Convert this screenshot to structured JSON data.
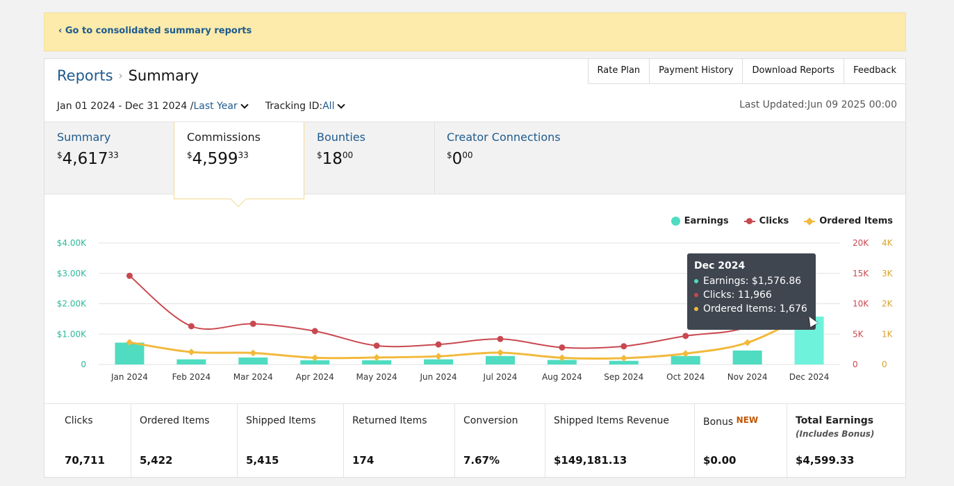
{
  "banner": {
    "link": "‹ Go to consolidated summary reports"
  },
  "header": {
    "breadcrumb_root": "Reports",
    "breadcrumb_sep": "›",
    "title": "Summary",
    "nav": [
      "Rate Plan",
      "Payment History",
      "Download Reports",
      "Feedback"
    ]
  },
  "filters": {
    "date_range": "Jan 01 2024 - Dec 31 2024 /",
    "period": "Last Year",
    "tracking_label": "Tracking ID:",
    "tracking_value": "All",
    "last_updated": "Last Updated:Jun 09 2025 00:00"
  },
  "tabs": [
    {
      "label": "Summary",
      "dollars": "4,617",
      "cents": "33",
      "currency": "$"
    },
    {
      "label": "Commissions",
      "dollars": "4,599",
      "cents": "33",
      "currency": "$"
    },
    {
      "label": "Bounties",
      "dollars": "18",
      "cents": "00",
      "currency": "$"
    },
    {
      "label": "Creator Connections",
      "dollars": "0",
      "cents": "00",
      "currency": "$"
    }
  ],
  "legend": {
    "earnings": "Earnings",
    "clicks": "Clicks",
    "ordered": "Ordered Items"
  },
  "colors": {
    "earnings": "#4fdcc0",
    "clicks": "#c9484f",
    "ordered": "#f2b93b",
    "link": "#1e5a8d",
    "banner": "#fcebab"
  },
  "tooltip": {
    "title": "Dec 2024",
    "earnings": "Earnings: $1,576.86",
    "clicks": "Clicks: 11,966",
    "ordered": "Ordered Items: 1,676"
  },
  "chart_data": {
    "type": "bar",
    "categories": [
      "Jan 2024",
      "Feb 2024",
      "Mar 2024",
      "Apr 2024",
      "May 2024",
      "Jun 2024",
      "Jul 2024",
      "Aug 2024",
      "Sep 2024",
      "Oct 2024",
      "Nov 2024",
      "Dec 2024"
    ],
    "series": [
      {
        "name": "Earnings",
        "axis": "left",
        "type": "bar",
        "values": [
          720,
          170,
          230,
          140,
          140,
          170,
          280,
          150,
          120,
          280,
          460,
          1576.86
        ]
      },
      {
        "name": "Clicks",
        "axis": "right1",
        "type": "line",
        "values": [
          14600,
          6300,
          6700,
          5500,
          3100,
          3300,
          4200,
          2800,
          3000,
          4700,
          6200,
          11966
        ]
      },
      {
        "name": "Ordered Items",
        "axis": "right2",
        "type": "line",
        "values": [
          730,
          410,
          380,
          220,
          230,
          270,
          390,
          220,
          210,
          360,
          720,
          1676
        ]
      }
    ],
    "y_left": {
      "ticks": [
        "0",
        "$1.00K",
        "$2.00K",
        "$3.00K",
        "$4.00K"
      ],
      "range": [
        0,
        4000
      ]
    },
    "y_right1": {
      "ticks": [
        "0",
        "5K",
        "10K",
        "15K",
        "20K"
      ],
      "range": [
        0,
        20000
      ]
    },
    "y_right2": {
      "ticks": [
        "0",
        "1K",
        "2K",
        "3K",
        "4K"
      ],
      "range": [
        0,
        4000
      ]
    }
  },
  "metrics": [
    {
      "label": "Clicks",
      "value": "70,711"
    },
    {
      "label": "Ordered Items",
      "value": "5,422"
    },
    {
      "label": "Shipped Items",
      "value": "5,415"
    },
    {
      "label": "Returned Items",
      "value": "174"
    },
    {
      "label": "Conversion",
      "value": "7.67%"
    },
    {
      "label": "Shipped Items Revenue",
      "value": "$149,181.13"
    },
    {
      "label": "Bonus",
      "badge": "NEW",
      "value": "$0.00"
    },
    {
      "label": "Total Earnings",
      "sub": "(Includes Bonus)",
      "value": "$4,599.33"
    }
  ]
}
